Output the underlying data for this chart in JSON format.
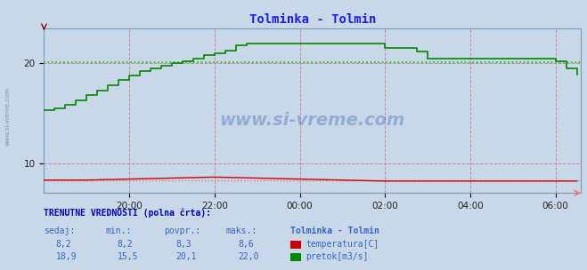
{
  "title": "Tolminka - Tolmin",
  "title_color": "#1a1aff",
  "bg_color": "#c8d8e8",
  "plot_bg_color": "#c8d8e8",
  "yticks": [
    10,
    20
  ],
  "ylim": [
    7.0,
    23.5
  ],
  "xtick_labels": [
    "20:00",
    "22:00",
    "00:00",
    "02:00",
    "04:00",
    "06:00"
  ],
  "xtick_positions": [
    20,
    22,
    24,
    26,
    28,
    30
  ],
  "watermark": "www.si-vreme.com",
  "temp_color": "#cc0000",
  "flow_color": "#008800",
  "temp_ref_color": "#ff6666",
  "flow_ref_color": "#00cc00",
  "temp_avg": 8.3,
  "flow_avg": 20.1,
  "temp_current": 8.2,
  "temp_min": 8.2,
  "temp_avg_disp": 8.3,
  "temp_max": 8.6,
  "flow_current": 18.9,
  "flow_min": 15.5,
  "flow_avg_disp": 20.1,
  "flow_max": 22.0,
  "legend_title": "Tolminka - Tolmin",
  "temp_label": "temperatura[C]",
  "flow_label": "pretok[m3/s]",
  "sidebar_text": "www.si-vreme.com",
  "sidebar_color": "#7799aa",
  "grid_color": "#cc8899",
  "spine_color": "#7799bb",
  "flow_series_x": [
    18.0,
    18.25,
    18.5,
    18.75,
    19.0,
    19.25,
    19.5,
    19.75,
    20.0,
    20.25,
    20.5,
    20.75,
    21.0,
    21.25,
    21.5,
    21.75,
    22.0,
    22.25,
    22.5,
    22.75,
    23.0,
    23.25,
    23.5,
    23.75,
    24.0,
    24.25,
    24.5,
    24.75,
    25.0,
    25.25,
    25.5,
    25.75,
    26.0,
    26.25,
    26.5,
    26.75,
    27.0,
    27.25,
    27.5,
    27.75,
    28.0,
    28.25,
    28.5,
    28.75,
    29.0,
    29.25,
    29.5,
    29.75,
    30.0,
    30.25,
    30.5
  ],
  "flow_series_y": [
    15.3,
    15.5,
    15.8,
    16.3,
    16.8,
    17.3,
    17.8,
    18.3,
    18.8,
    19.2,
    19.5,
    19.8,
    20.0,
    20.2,
    20.5,
    20.8,
    21.0,
    21.3,
    21.8,
    22.0,
    22.0,
    22.0,
    22.0,
    22.0,
    22.0,
    22.0,
    22.0,
    22.0,
    22.0,
    22.0,
    22.0,
    22.0,
    21.5,
    21.5,
    21.5,
    21.2,
    20.5,
    20.5,
    20.5,
    20.5,
    20.5,
    20.5,
    20.5,
    20.5,
    20.5,
    20.5,
    20.5,
    20.5,
    20.2,
    19.5,
    18.9
  ],
  "temp_series_x": [
    18.0,
    19.0,
    20.0,
    21.0,
    22.0,
    23.0,
    24.0,
    25.0,
    26.0,
    27.0,
    28.0,
    29.0,
    30.0,
    30.5
  ],
  "temp_series_y": [
    8.3,
    8.3,
    8.4,
    8.5,
    8.6,
    8.5,
    8.4,
    8.3,
    8.2,
    8.2,
    8.2,
    8.2,
    8.2,
    8.2
  ]
}
